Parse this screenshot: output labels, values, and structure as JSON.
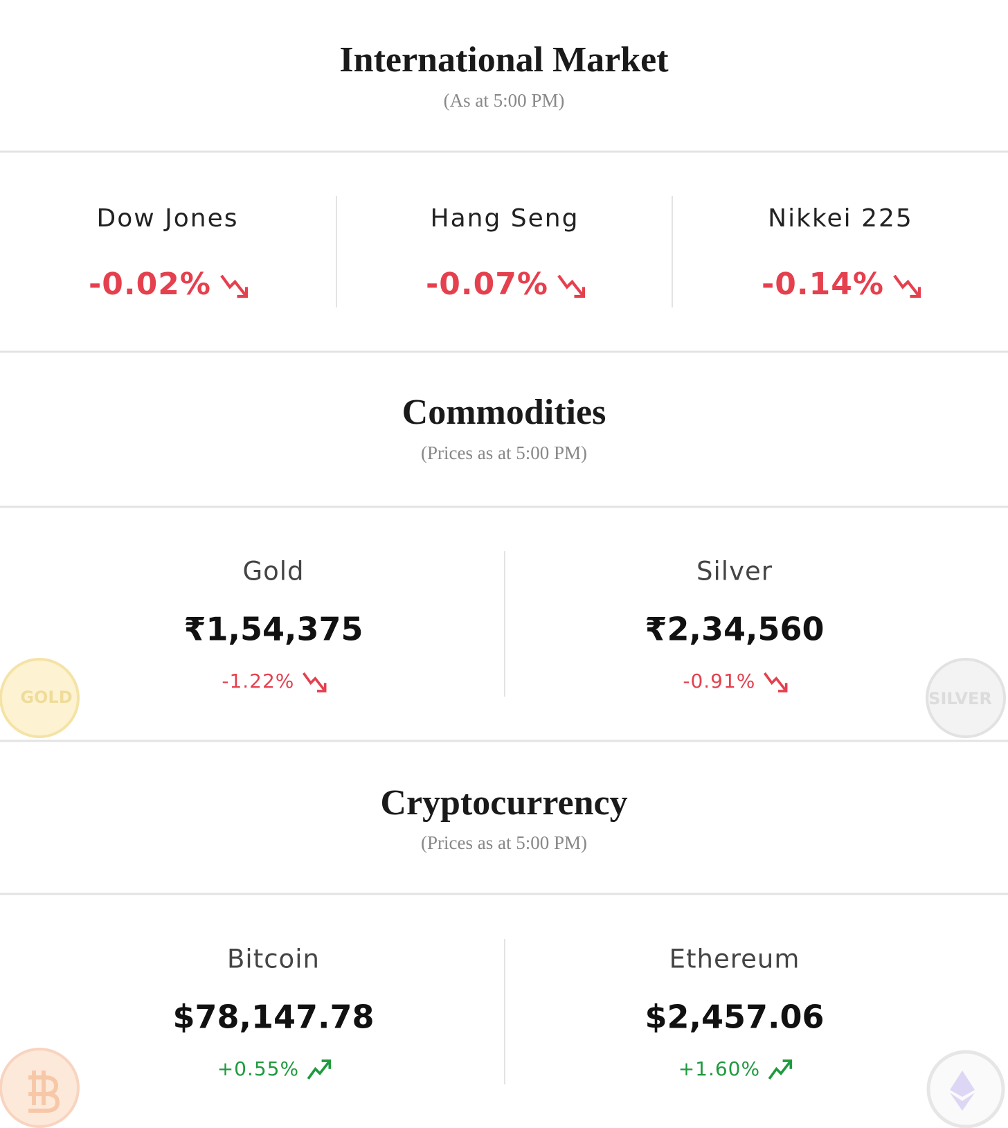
{
  "sections": [
    {
      "title": "International Market",
      "subtitle": "(As at 5:00 PM)",
      "items": [
        {
          "name": "Dow Jones",
          "change": "-0.02%"
        },
        {
          "name": "Hang Seng",
          "change": "-0.07%"
        },
        {
          "name": "Nikkei 225",
          "change": "-0.14%"
        }
      ]
    },
    {
      "title": "Commodities",
      "subtitle": "(Prices as at 5:00 PM)",
      "items": [
        {
          "name": "Gold",
          "price": "₹1,54,375",
          "change": "-1.22%"
        },
        {
          "name": "Silver",
          "price": "₹2,34,560",
          "change": "-0.91%"
        }
      ],
      "coins": [
        "GOLD",
        "SILVER"
      ]
    },
    {
      "title": "Cryptocurrency",
      "subtitle": "(Prices as at 5:00 PM)",
      "items": [
        {
          "name": "Bitcoin",
          "price": "$78,147.78",
          "change": "+0.55%"
        },
        {
          "name": "Ethereum",
          "price": "$2,457.06",
          "change": "+1.60%"
        }
      ]
    }
  ]
}
